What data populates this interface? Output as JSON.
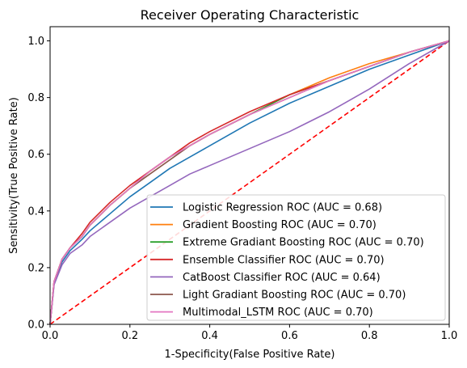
{
  "chart_data": {
    "type": "line",
    "title": "Receiver Operating Characteristic",
    "xlabel": "1-Specificity(False Positive Rate)",
    "ylabel": "Sensitivity(True Positive Rate)",
    "xlim": [
      0.0,
      1.0
    ],
    "ylim": [
      0.0,
      1.05
    ],
    "xticks": [
      0.0,
      0.2,
      0.4,
      0.6,
      0.8,
      1.0
    ],
    "yticks": [
      0.0,
      0.2,
      0.4,
      0.6,
      0.8,
      1.0
    ],
    "xtick_labels": [
      "0.0",
      "0.2",
      "0.4",
      "0.6",
      "0.8",
      "1.0"
    ],
    "ytick_labels": [
      "0.0",
      "0.2",
      "0.4",
      "0.6",
      "0.8",
      "1.0"
    ],
    "grid": false,
    "legend_position": "lower-right",
    "series": [
      {
        "name": "Logistic Regression ROC (AUC = 0.68)",
        "color": "#1f77b4",
        "x": [
          0,
          0.01,
          0.03,
          0.05,
          0.08,
          0.1,
          0.15,
          0.2,
          0.25,
          0.3,
          0.35,
          0.4,
          0.5,
          0.6,
          0.7,
          0.8,
          0.9,
          1.0
        ],
        "y": [
          0,
          0.14,
          0.22,
          0.26,
          0.3,
          0.33,
          0.39,
          0.45,
          0.5,
          0.55,
          0.59,
          0.63,
          0.71,
          0.78,
          0.84,
          0.9,
          0.95,
          1.0
        ]
      },
      {
        "name": "Gradient Boosting ROC (AUC = 0.70)",
        "color": "#ff7f0e",
        "x": [
          0,
          0.01,
          0.03,
          0.05,
          0.08,
          0.1,
          0.15,
          0.2,
          0.25,
          0.3,
          0.35,
          0.4,
          0.5,
          0.6,
          0.7,
          0.8,
          0.9,
          1.0
        ],
        "y": [
          0,
          0.15,
          0.23,
          0.27,
          0.31,
          0.35,
          0.42,
          0.48,
          0.54,
          0.59,
          0.63,
          0.67,
          0.74,
          0.81,
          0.87,
          0.92,
          0.96,
          1.0
        ]
      },
      {
        "name": "Extreme Gradiant Boosting ROC (AUC = 0.70)",
        "color": "#2ca02c",
        "x": [
          0,
          0.01,
          0.03,
          0.05,
          0.08,
          0.1,
          0.15,
          0.2,
          0.25,
          0.3,
          0.35,
          0.4,
          0.5,
          0.6,
          0.7,
          0.8,
          0.9,
          1.0
        ],
        "y": [
          0,
          0.15,
          0.23,
          0.27,
          0.31,
          0.35,
          0.42,
          0.48,
          0.54,
          0.59,
          0.63,
          0.67,
          0.74,
          0.81,
          0.86,
          0.91,
          0.96,
          1.0
        ]
      },
      {
        "name": "Ensemble Classifier ROC (AUC = 0.70)",
        "color": "#d62728",
        "x": [
          0,
          0.01,
          0.03,
          0.05,
          0.08,
          0.1,
          0.15,
          0.2,
          0.25,
          0.3,
          0.35,
          0.4,
          0.5,
          0.6,
          0.7,
          0.8,
          0.9,
          1.0
        ],
        "y": [
          0,
          0.15,
          0.23,
          0.27,
          0.32,
          0.36,
          0.43,
          0.49,
          0.54,
          0.59,
          0.64,
          0.68,
          0.75,
          0.81,
          0.86,
          0.91,
          0.96,
          1.0
        ]
      },
      {
        "name": "CatBoost Classifier ROC (AUC = 0.64)",
        "color": "#9467bd",
        "x": [
          0,
          0.01,
          0.03,
          0.05,
          0.08,
          0.1,
          0.15,
          0.2,
          0.25,
          0.3,
          0.35,
          0.4,
          0.5,
          0.6,
          0.7,
          0.8,
          0.9,
          1.0
        ],
        "y": [
          0,
          0.14,
          0.21,
          0.25,
          0.28,
          0.31,
          0.36,
          0.41,
          0.45,
          0.49,
          0.53,
          0.56,
          0.62,
          0.68,
          0.75,
          0.83,
          0.92,
          1.0
        ]
      },
      {
        "name": "Light Gradiant Boosting ROC (AUC = 0.70)",
        "color": "#8c564b",
        "x": [
          0,
          0.01,
          0.03,
          0.05,
          0.08,
          0.1,
          0.15,
          0.2,
          0.25,
          0.3,
          0.35,
          0.4,
          0.5,
          0.6,
          0.7,
          0.8,
          0.9,
          1.0
        ],
        "y": [
          0,
          0.15,
          0.23,
          0.27,
          0.31,
          0.35,
          0.42,
          0.48,
          0.53,
          0.58,
          0.63,
          0.67,
          0.74,
          0.8,
          0.86,
          0.91,
          0.96,
          1.0
        ]
      },
      {
        "name": "Multimodal_LSTM ROC (AUC = 0.70)",
        "color": "#e377c2",
        "x": [
          0,
          0.01,
          0.03,
          0.05,
          0.08,
          0.1,
          0.15,
          0.2,
          0.25,
          0.3,
          0.35,
          0.4,
          0.5,
          0.6,
          0.7,
          0.8,
          0.9,
          1.0
        ],
        "y": [
          0,
          0.15,
          0.23,
          0.27,
          0.31,
          0.35,
          0.42,
          0.48,
          0.54,
          0.59,
          0.63,
          0.67,
          0.74,
          0.8,
          0.86,
          0.91,
          0.96,
          1.0
        ]
      }
    ],
    "reference_line": {
      "x": [
        0,
        1
      ],
      "y": [
        0,
        1
      ],
      "color": "#ff0000",
      "style": "dashed"
    }
  }
}
